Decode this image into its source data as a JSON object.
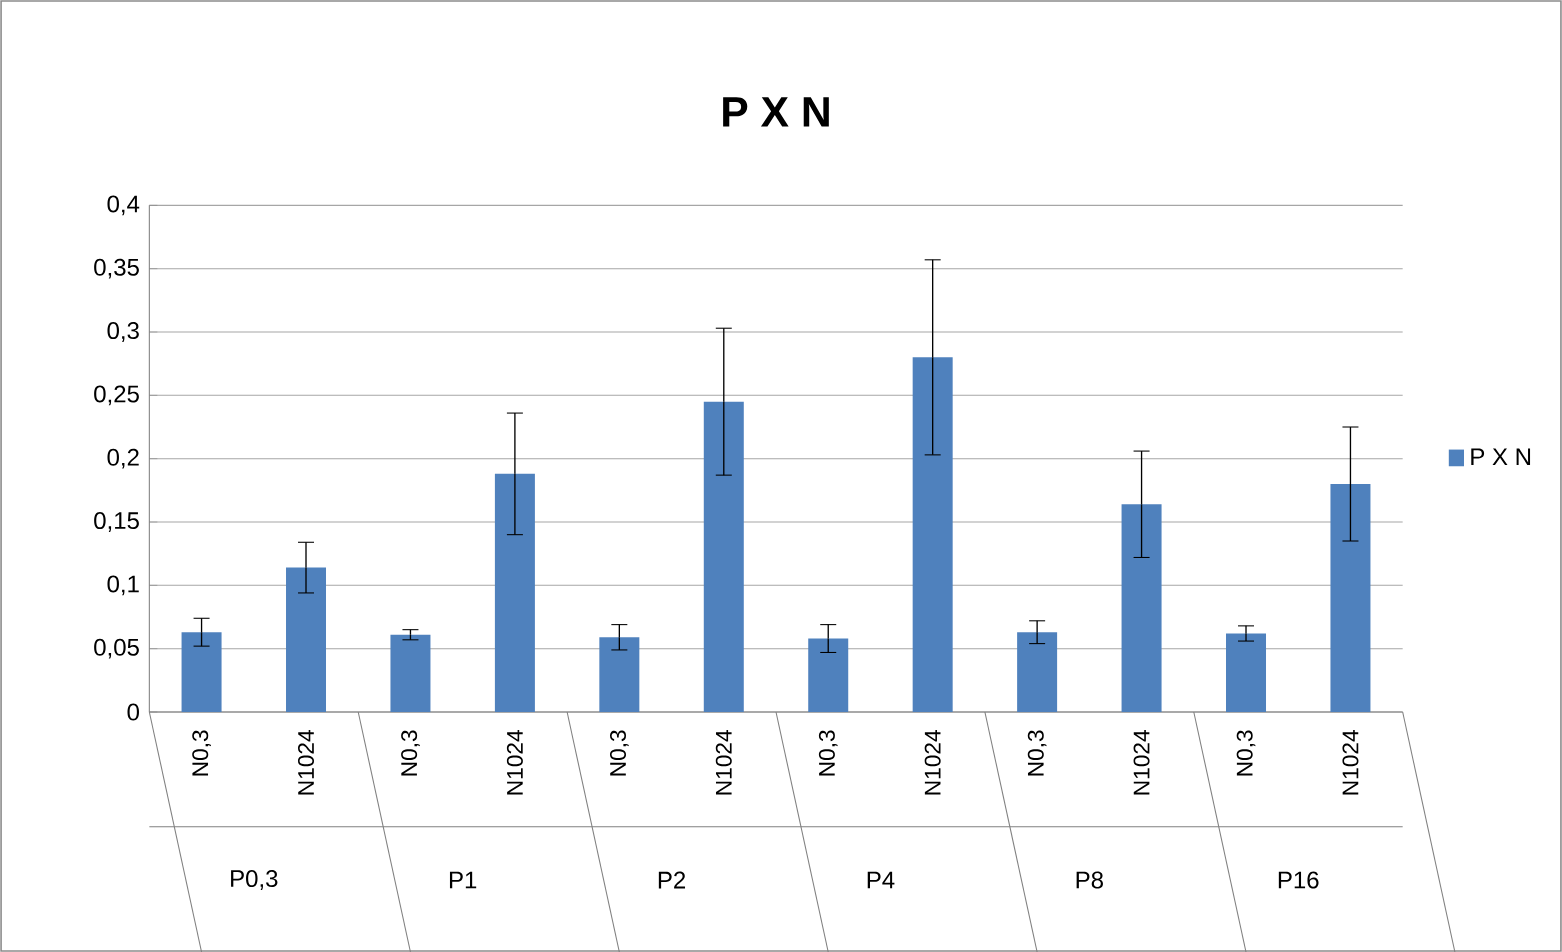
{
  "chart_data": {
    "type": "bar",
    "title": "P X N",
    "categories": [
      "N0,3",
      "N1024",
      "N0,3",
      "N1024",
      "N0,3",
      "N1024",
      "N0,3",
      "N1024",
      "N0,3",
      "N1024",
      "N0,3",
      "N1024"
    ],
    "series": [
      {
        "name": "P X N",
        "color": "#4f81bd",
        "values": [
          0.063,
          0.114,
          0.061,
          0.188,
          0.059,
          0.245,
          0.058,
          0.28,
          0.063,
          0.164,
          0.062,
          0.18
        ],
        "errors": [
          0.011,
          0.02,
          0.004,
          0.048,
          0.01,
          0.058,
          0.011,
          0.077,
          0.009,
          0.042,
          0.006,
          0.045
        ]
      }
    ],
    "annotations": [
      "P0,3",
      "P1",
      "P2",
      "P4",
      "P8",
      "P16"
    ],
    "ylim": [
      0,
      0.4
    ],
    "yticks": [
      {
        "value": 0,
        "label": "0"
      },
      {
        "value": 0.05,
        "label": "0,05"
      },
      {
        "value": 0.1,
        "label": "0,1"
      },
      {
        "value": 0.15,
        "label": "0,15"
      },
      {
        "value": 0.2,
        "label": "0,2"
      },
      {
        "value": 0.25,
        "label": "0,25"
      },
      {
        "value": 0.3,
        "label": "0,3"
      },
      {
        "value": 0.35,
        "label": "0,35"
      },
      {
        "value": 0.4,
        "label": "0,4"
      }
    ],
    "grid": "y",
    "legend": "right"
  }
}
